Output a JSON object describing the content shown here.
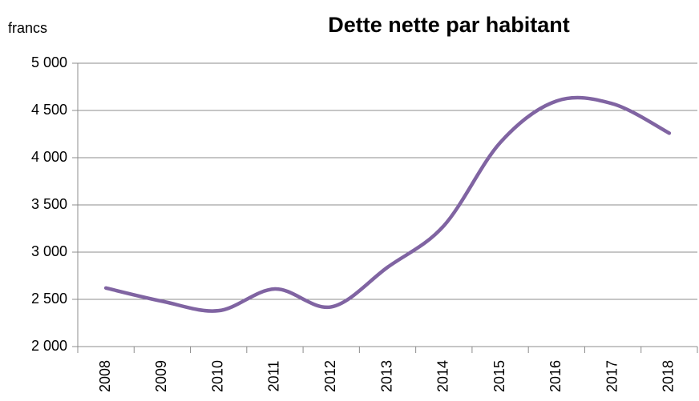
{
  "chart_data": {
    "type": "line",
    "title": "Dette nette par habitant",
    "y_label": "francs",
    "categories": [
      "2008",
      "2009",
      "2010",
      "2011",
      "2012",
      "2013",
      "2014",
      "2015",
      "2016",
      "2017",
      "2018"
    ],
    "series": [
      {
        "name": "Dette nette par habitant",
        "color": "#8064a2",
        "values": [
          2620,
          2480,
          2380,
          2610,
          2420,
          2840,
          3280,
          4160,
          4600,
          4570,
          4260
        ]
      }
    ],
    "ylim": [
      2000,
      5000
    ],
    "yticks": [
      {
        "value": 2000,
        "label": "2 000"
      },
      {
        "value": 2500,
        "label": "2 500"
      },
      {
        "value": 3000,
        "label": "3 000"
      },
      {
        "value": 3500,
        "label": "3 500"
      },
      {
        "value": 4000,
        "label": "4 000"
      },
      {
        "value": 4500,
        "label": "4 500"
      },
      {
        "value": 5000,
        "label": "5 000"
      }
    ],
    "grid": true,
    "smooth": true
  }
}
